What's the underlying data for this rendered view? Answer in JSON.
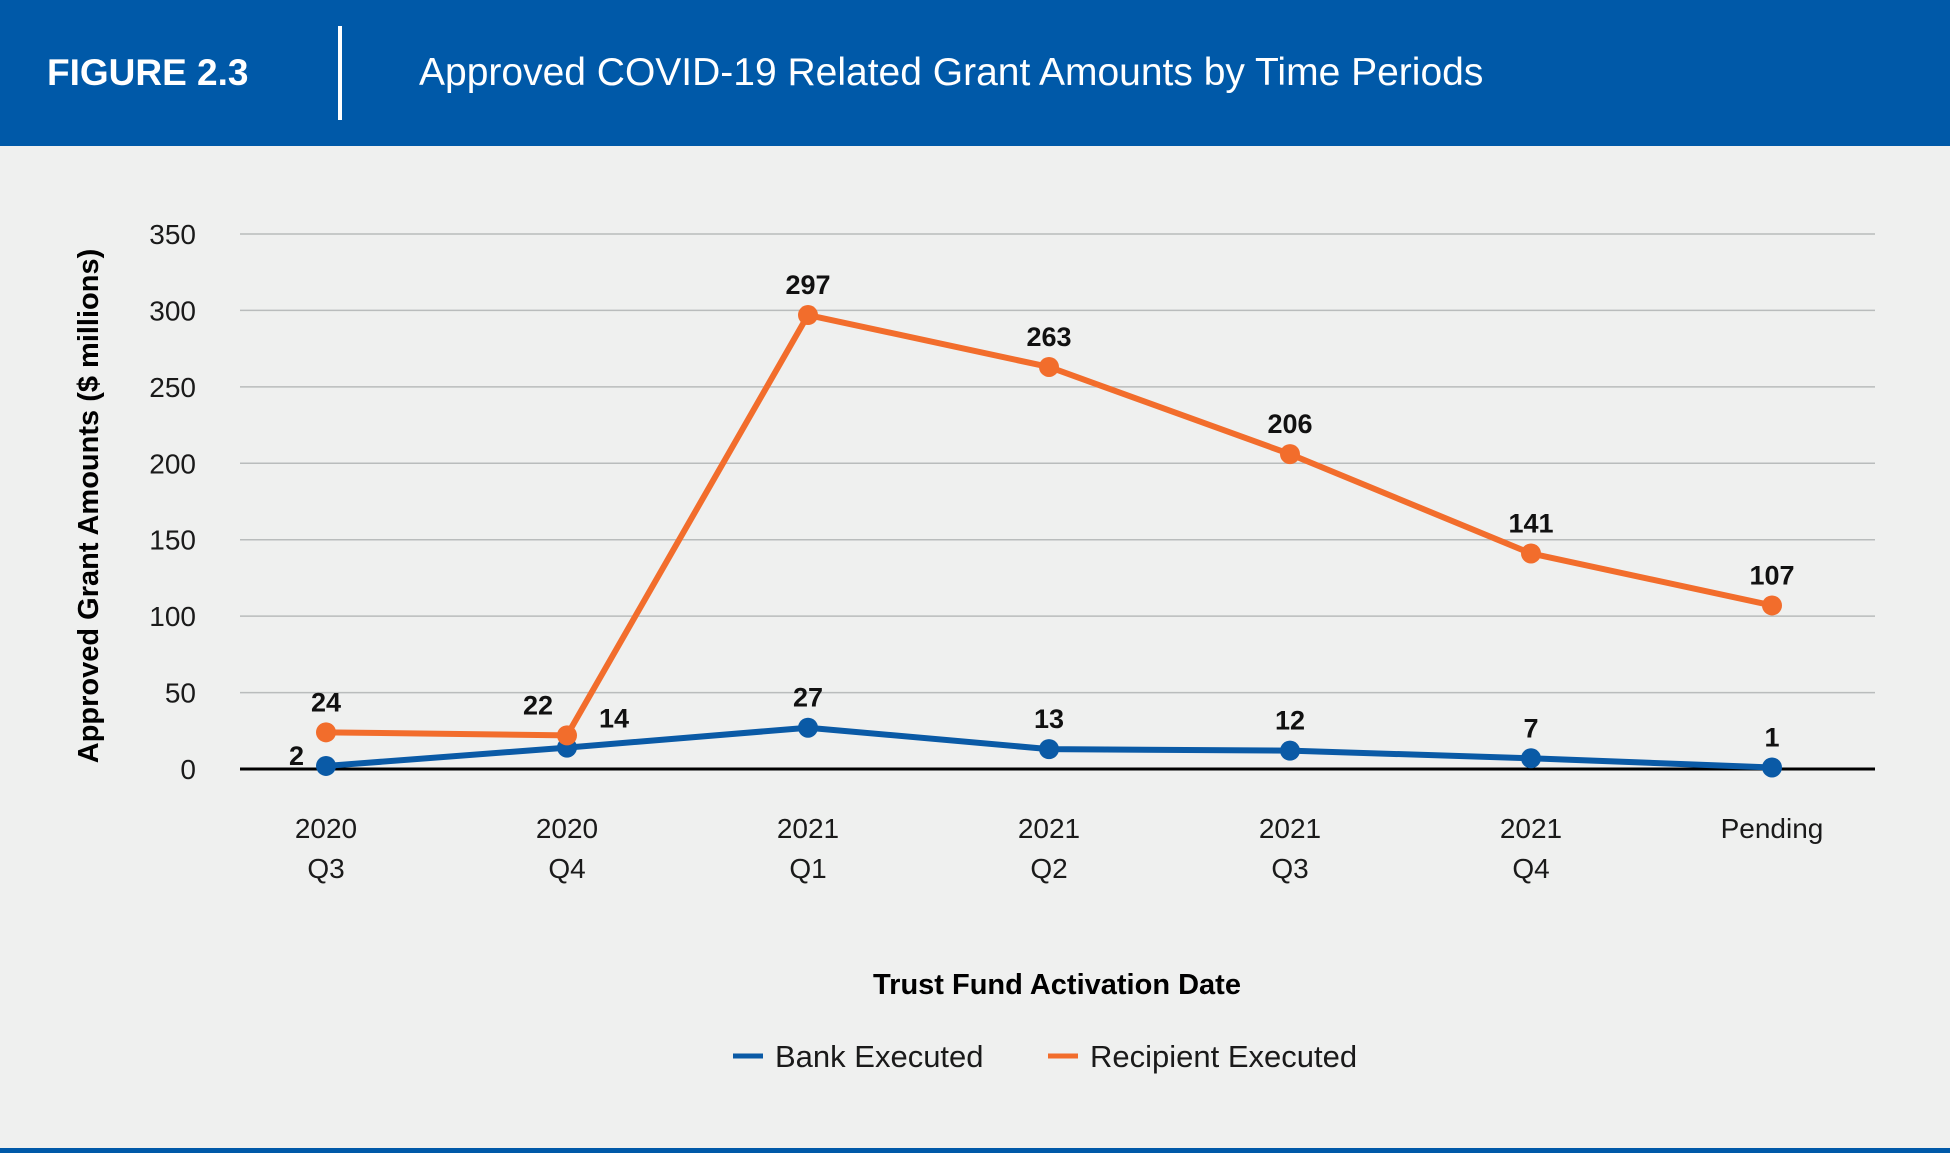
{
  "header": {
    "figure_label": "FIGURE 2.3",
    "title": "Approved COVID-19 Related Grant Amounts by Time Periods"
  },
  "colors": {
    "header_bg": "#0059a8",
    "background": "#eff0ef",
    "bank": "#0a5aa6",
    "recipient": "#f26d2c"
  },
  "chart_data": {
    "type": "line",
    "categories": [
      [
        "2020",
        "Q3"
      ],
      [
        "2020",
        "Q4"
      ],
      [
        "2021",
        "Q1"
      ],
      [
        "2021",
        "Q2"
      ],
      [
        "2021",
        "Q3"
      ],
      [
        "2021",
        "Q4"
      ],
      [
        "Pending"
      ]
    ],
    "series": [
      {
        "name": "Bank Executed",
        "color": "#0a5aa6",
        "values": [
          2,
          14,
          27,
          13,
          12,
          7,
          1
        ]
      },
      {
        "name": "Recipient Executed",
        "color": "#f26d2c",
        "values": [
          24,
          22,
          297,
          263,
          206,
          141,
          107
        ]
      }
    ],
    "xlabel": "Trust Fund Activation Date",
    "ylabel": "Approved Grant Amounts ($ millions)",
    "ylim": [
      0,
      350
    ],
    "yticks": [
      0,
      50,
      100,
      150,
      200,
      250,
      300,
      350
    ],
    "grid": true,
    "legend": "bottom-center"
  }
}
